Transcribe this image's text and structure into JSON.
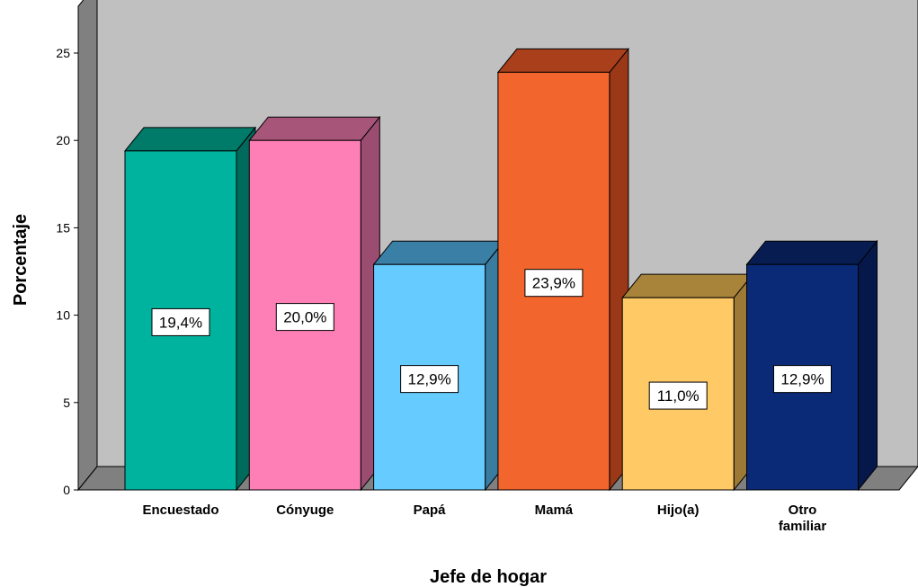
{
  "chart_data": {
    "type": "bar",
    "xlabel": "Jefe de hogar",
    "ylabel": "Porcentaje",
    "ylim": [
      0,
      25
    ],
    "yticks": [
      "0",
      "5",
      "10",
      "15",
      "20",
      "25"
    ],
    "grid": false,
    "style": "3d",
    "categories": [
      [
        "Encuestado"
      ],
      [
        "Cónyuge"
      ],
      [
        "Papá"
      ],
      [
        "Mamá"
      ],
      [
        "Hijo(a)"
      ],
      [
        "Otro",
        "familiar"
      ]
    ],
    "values": [
      19.4,
      20.0,
      12.9,
      23.9,
      11.0,
      12.9
    ],
    "data_labels": [
      "19,4%",
      "20,0%",
      "12,9%",
      "23,9%",
      "11,0%",
      "12,9%"
    ],
    "colors": [
      {
        "front": "#00b39e",
        "top": "#007a69",
        "side": "#006b5c"
      },
      {
        "front": "#fe7fb6",
        "top": "#a8557a",
        "side": "#9a4d70"
      },
      {
        "front": "#66ccff",
        "top": "#3a7fa6",
        "side": "#3a7ba0"
      },
      {
        "front": "#f2652d",
        "top": "#a9401b",
        "side": "#9a3817"
      },
      {
        "front": "#ffc966",
        "top": "#a8843a",
        "side": "#9c7a35"
      },
      {
        "front": "#0a2a78",
        "top": "#071d52",
        "side": "#06184a"
      }
    ],
    "wall_color": "#c0c0c0",
    "floor_color": "#808080"
  }
}
